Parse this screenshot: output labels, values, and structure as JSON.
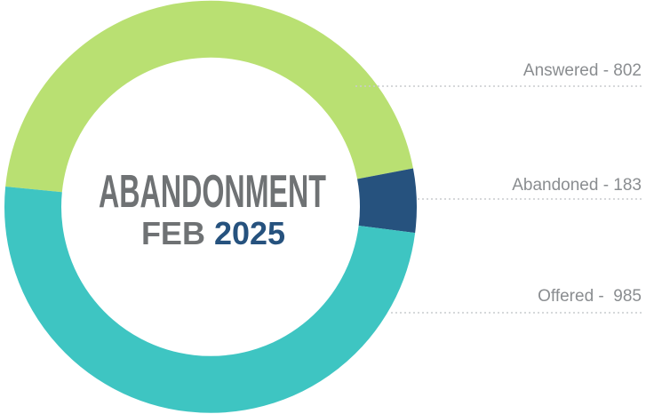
{
  "donut": {
    "title": "ABANDONMENT",
    "period": {
      "month": "FEB",
      "year": "2025"
    },
    "labels": [
      "Answered - 802",
      "Abandoned - 183",
      "Offered -  985"
    ]
  }
}
